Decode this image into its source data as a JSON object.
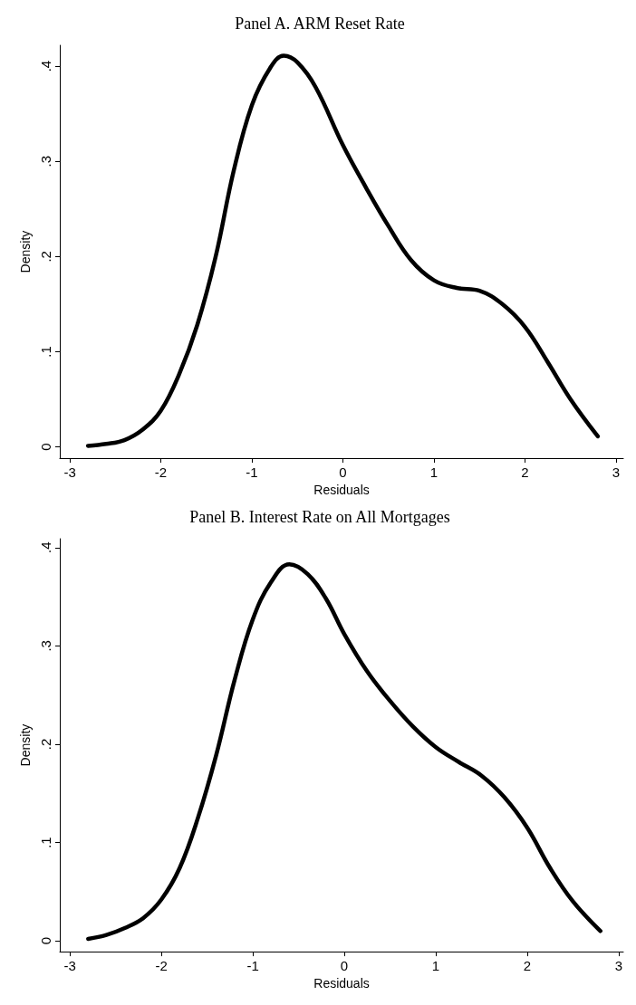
{
  "chart_data": [
    {
      "type": "line",
      "title": "Panel A. ARM Reset Rate",
      "xlabel": "Residuals",
      "ylabel": "Density",
      "x": [
        -2.8,
        -2.6,
        -2.4,
        -2.2,
        -2.0,
        -1.8,
        -1.6,
        -1.4,
        -1.2,
        -1.0,
        -0.8,
        -0.65,
        -0.5,
        -0.3,
        0,
        0.25,
        0.5,
        0.75,
        1.0,
        1.25,
        1.5,
        1.75,
        2.0,
        2.25,
        2.5,
        2.8
      ],
      "series": [
        {
          "color": "#000000",
          "values": [
            0.001,
            0.003,
            0.007,
            0.018,
            0.038,
            0.076,
            0.128,
            0.199,
            0.29,
            0.359,
            0.398,
            0.411,
            0.404,
            0.378,
            0.317,
            0.273,
            0.232,
            0.196,
            0.175,
            0.167,
            0.164,
            0.15,
            0.126,
            0.089,
            0.05,
            0.011
          ]
        }
      ],
      "xlim": [
        -3.11,
        3.08
      ],
      "xticks": [
        -3,
        -2,
        -1,
        0,
        1,
        2,
        3
      ],
      "ylim": [
        -0.012,
        0.422
      ],
      "yticks": [
        0,
        {
          "value": 0.1,
          "label": ".1"
        },
        {
          "value": 0.2,
          "label": ".2"
        },
        {
          "value": 0.3,
          "label": ".3"
        },
        {
          "value": 0.4,
          "label": ".4"
        }
      ],
      "marker": "none",
      "line_style": "solid"
    },
    {
      "type": "line",
      "title": "Panel B. Interest Rate on All Mortgages",
      "xlabel": "Residuals",
      "ylabel": "Density",
      "x": [
        -2.8,
        -2.6,
        -2.4,
        -2.2,
        -2.0,
        -1.8,
        -1.6,
        -1.4,
        -1.2,
        -1.0,
        -0.8,
        -0.6,
        -0.4,
        -0.2,
        0,
        0.25,
        0.5,
        0.75,
        1.0,
        1.25,
        1.5,
        1.75,
        2.0,
        2.25,
        2.5,
        2.8
      ],
      "series": [
        {
          "color": "#000000",
          "values": [
            0.002,
            0.006,
            0.013,
            0.023,
            0.042,
            0.074,
            0.125,
            0.189,
            0.265,
            0.327,
            0.365,
            0.383,
            0.373,
            0.348,
            0.312,
            0.274,
            0.244,
            0.218,
            0.197,
            0.182,
            0.168,
            0.146,
            0.115,
            0.074,
            0.04,
            0.01
          ]
        }
      ],
      "xlim": [
        -3.11,
        3.05
      ],
      "xticks": [
        -3,
        -2,
        -1,
        0,
        1,
        2,
        3
      ],
      "ylim": [
        -0.011,
        0.409
      ],
      "yticks": [
        0,
        {
          "value": 0.1,
          "label": ".1"
        },
        {
          "value": 0.2,
          "label": ".2"
        },
        {
          "value": 0.3,
          "label": ".3"
        },
        {
          "value": 0.4,
          "label": ".4"
        }
      ],
      "marker": "none",
      "line_style": "solid"
    }
  ]
}
